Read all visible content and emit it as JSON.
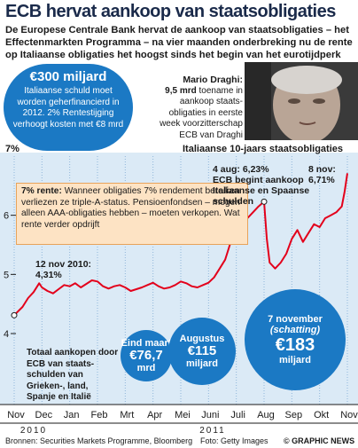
{
  "title": "ECB hervat aankoop van staatsobligaties",
  "intro": "De Europese Centrale Bank hervat de aankoop van staatsobligaties – het Effectenmarkten Programma – na vier maanden onderbreking nu de rente op Italiaanse obligaties het hoogst sinds het begin van het eurotijdperk",
  "callout": {
    "amount": "€300 miljard",
    "text": "Italiaanse schuld moet worden geherfinancierd in 2012. 2% Rentestijging verhoogt kosten met €8 mrd"
  },
  "draghi": {
    "name": "Mario Draghi:",
    "amount": "9,5 mrd",
    "text": " toename in aankoop staats-obligaties in eerste week voorzitterschap ECB van Draghi"
  },
  "chart_header": {
    "unit_label": "7%",
    "title": "Italiaanse 10-jaars staatsobligaties"
  },
  "annotation_rente": {
    "bold": "7% rente:",
    "text": " Wanneer obligaties 7% rendement bereiken verliezen ze triple-A-status. Pensioenfondsen – mogen alleen AAA-obligaties hebben – moeten verkopen. Wat rente verder opdrijft"
  },
  "labels": {
    "nov2010_date": "12 nov 2010:",
    "nov2010_value": "4,31%",
    "aug_date": "4 aug: 6,23%",
    "aug_text1": "ECB begint aankoop",
    "aug_text2": "Italiaanse en Spaanse",
    "aug_text3": "schulden",
    "nov8_date": "8 nov:",
    "nov8_value": "6,71%"
  },
  "totaal": "Totaal aankopen door ECB van staats-schulden van Grieken-, land, Spanje en Italië",
  "bubbles": [
    {
      "label": "Eind maart",
      "value": "€76,7",
      "unit": "mrd"
    },
    {
      "label": "Augustus",
      "value": "€115",
      "unit": "miljard"
    },
    {
      "label": "7 november",
      "sublabel": "(schatting)",
      "value": "€183",
      "unit": "miljard"
    }
  ],
  "footer": {
    "source": "Bronnen: Securities Markets Programme, Bloomberg",
    "photo": "Foto: Getty Images",
    "brand": "© GRAPHIC NEWS"
  },
  "colors": {
    "line": "#e3001b",
    "bubble": "#1b79c4",
    "chart_bg": "#dbeaf6",
    "annotation_bg": "#fde3c4",
    "title": "#1a2a4a"
  },
  "chart_data": {
    "type": "line",
    "title": "Italiaanse 10-jaars staatsobligaties",
    "ylabel": "7%",
    "ylim": [
      4,
      7
    ],
    "yticks": [
      4,
      5,
      6
    ],
    "x_categories": [
      "Nov",
      "Dec",
      "Jan",
      "Feb",
      "Mrt",
      "Apr",
      "Mei",
      "Juni",
      "Juli",
      "Aug",
      "Sep",
      "Okt",
      "Nov"
    ],
    "x_years": [
      "2010",
      "2011"
    ],
    "series": [
      {
        "x": [
          0,
          0.3,
          0.5,
          0.7,
          0.9,
          1.0,
          1.2,
          1.4,
          1.6,
          1.8,
          2.0,
          2.2,
          2.4,
          2.6,
          2.8,
          3.0,
          3.2,
          3.4,
          3.6,
          3.8,
          4.0,
          4.2,
          4.4,
          4.6,
          4.8,
          5.0,
          5.2,
          5.4,
          5.6,
          5.8,
          6.0,
          6.2,
          6.4,
          6.6,
          6.8,
          7.0,
          7.2,
          7.4,
          7.6,
          7.8,
          8.0,
          8.2,
          8.4,
          8.6,
          8.8,
          9.0,
          9.1,
          9.2,
          9.4,
          9.6,
          9.8,
          10.0,
          10.2,
          10.4,
          10.6,
          10.8,
          11.0,
          11.2,
          11.4,
          11.6,
          11.8,
          11.9,
          12.0
        ],
        "values": [
          4.31,
          4.45,
          4.6,
          4.7,
          4.85,
          4.78,
          4.72,
          4.68,
          4.75,
          4.82,
          4.8,
          4.85,
          4.78,
          4.84,
          4.9,
          4.88,
          4.8,
          4.76,
          4.8,
          4.82,
          4.78,
          4.72,
          4.75,
          4.78,
          4.82,
          4.86,
          4.8,
          4.76,
          4.78,
          4.82,
          4.88,
          4.85,
          4.8,
          4.78,
          4.82,
          4.86,
          4.95,
          5.1,
          5.25,
          5.55,
          5.85,
          5.7,
          5.95,
          6.05,
          6.15,
          6.23,
          5.6,
          5.2,
          5.1,
          5.2,
          5.35,
          5.6,
          5.75,
          5.55,
          5.7,
          5.85,
          5.8,
          5.95,
          6.0,
          6.05,
          6.15,
          6.4,
          6.71
        ]
      }
    ]
  }
}
